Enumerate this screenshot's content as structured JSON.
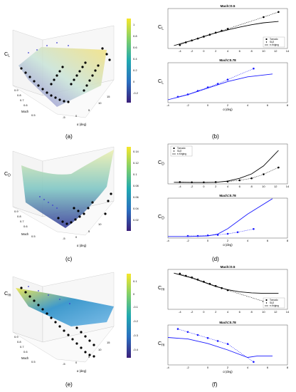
{
  "figure": {
    "captions": [
      "(a)",
      "(b)",
      "(c)",
      "(d)",
      "(e)",
      "(f)"
    ],
    "surface_axes": {
      "y_label": "Mach",
      "x_label": "α (deg)"
    },
    "surface_z_labels": [
      "CL",
      "CD",
      "Cm"
    ],
    "colorbars": [
      {
        "ticks": [
          "1",
          "0.8",
          "0.6",
          "0.4",
          "0.2",
          "0",
          "-0.2"
        ]
      },
      {
        "ticks": [
          "0.14",
          "0.12",
          "0.1",
          "0.08",
          "0.06",
          "0.04",
          "0.02"
        ]
      },
      {
        "ticks": [
          "0.1",
          "0",
          "-0.1",
          "-0.2",
          "-0.3",
          "-0.4"
        ]
      }
    ],
    "mach_ticks": [
      "0.9",
      "0.8",
      "0.7",
      "0.6",
      "0.5"
    ],
    "alpha_ticks_3d": [
      "-5",
      "0",
      "5",
      "10",
      "15"
    ],
    "legend": [
      "Tornado",
      "SU2",
      "e-Kriging"
    ]
  },
  "chart_data": [
    {
      "type": "line",
      "title": "Mach=0.5",
      "ylabel": "CL",
      "xlabel": "",
      "xlim": [
        -6,
        14
      ],
      "ylim": [
        -0.3,
        1.8
      ],
      "xticks": [
        -4,
        -2,
        0,
        2,
        4,
        6,
        8,
        10,
        12,
        14
      ],
      "series": [
        {
          "name": "Tornado",
          "style": "dotted-markers",
          "color": "#000000",
          "x": [
            -4,
            -3,
            -2,
            -1,
            0,
            1,
            2,
            3,
            4,
            10,
            12.5
          ],
          "y": [
            -0.12,
            0.02,
            0.12,
            0.22,
            0.32,
            0.42,
            0.53,
            0.63,
            0.73,
            1.35,
            1.62
          ]
        },
        {
          "name": "SU2",
          "style": "markers",
          "color": "#000000",
          "x": [
            -2,
            -1,
            0,
            1,
            2,
            3
          ],
          "y": [
            0.14,
            0.24,
            0.35,
            0.45,
            0.55,
            0.65
          ]
        },
        {
          "name": "e-Kriging",
          "style": "line",
          "color": "#000000",
          "x": [
            -5,
            -2,
            0,
            2,
            4,
            6,
            8,
            10,
            12.5
          ],
          "y": [
            -0.15,
            0.12,
            0.33,
            0.52,
            0.68,
            0.82,
            0.95,
            1.05,
            1.12
          ]
        }
      ]
    },
    {
      "type": "line",
      "title": "Mach=0.78",
      "ylabel": "CL",
      "xlabel": "α (deg)",
      "xlim": [
        -4,
        8
      ],
      "ylim": [
        -0.2,
        1.5
      ],
      "xticks": [
        -4,
        -2,
        0,
        2,
        4,
        6,
        8
      ],
      "series": [
        {
          "name": "Tornado",
          "style": "dotted-markers",
          "color": "#1a1aff",
          "x": [
            -3,
            -2,
            -1,
            0,
            1,
            2,
            4.6
          ],
          "y": [
            0.05,
            0.15,
            0.3,
            0.45,
            0.6,
            0.78,
            1.25
          ]
        },
        {
          "name": "e-Kriging",
          "style": "line",
          "color": "#1a1aff",
          "x": [
            -4,
            -2,
            0,
            2,
            4,
            6.5
          ],
          "y": [
            -0.08,
            0.14,
            0.42,
            0.7,
            0.9,
            1.02
          ]
        }
      ]
    },
    {
      "type": "line",
      "title": "",
      "ylabel": "CD",
      "xlabel": "",
      "xlim": [
        -6,
        14
      ],
      "ylim": [
        0,
        0.2
      ],
      "xticks": [
        -4,
        -2,
        0,
        2,
        4,
        6,
        8,
        10,
        12,
        14
      ],
      "series": [
        {
          "name": "Tornado",
          "style": "dotted-markers",
          "color": "#000000",
          "x": [
            -4,
            -2,
            0,
            2,
            4,
            6,
            8,
            10,
            12.5
          ],
          "y": [
            0.009,
            0.008,
            0.008,
            0.009,
            0.012,
            0.018,
            0.028,
            0.048,
            0.082
          ]
        },
        {
          "name": "e-Kriging",
          "style": "line",
          "color": "#000000",
          "x": [
            -5,
            -2,
            0,
            2,
            4,
            6,
            8,
            10,
            12.5
          ],
          "y": [
            0.008,
            0.007,
            0.007,
            0.008,
            0.014,
            0.028,
            0.05,
            0.09,
            0.168
          ]
        }
      ]
    },
    {
      "type": "line",
      "title": "Mach=0.78",
      "ylabel": "CD",
      "xlabel": "α (deg)",
      "xlim": [
        -4,
        8
      ],
      "ylim": [
        0,
        0.15
      ],
      "xticks": [
        -4,
        -2,
        0,
        2,
        4,
        6,
        8
      ],
      "series": [
        {
          "name": "Tornado",
          "style": "dotted-markers",
          "color": "#1a1aff",
          "x": [
            -2,
            -1,
            0,
            1,
            2,
            3,
            4.6
          ],
          "y": [
            0.008,
            0.008,
            0.01,
            0.012,
            0.016,
            0.022,
            0.034
          ]
        },
        {
          "name": "e-Kriging",
          "style": "line",
          "color": "#1a1aff",
          "x": [
            -4,
            -2,
            0,
            1,
            2,
            4,
            6.5
          ],
          "y": [
            0.006,
            0.006,
            0.008,
            0.015,
            0.035,
            0.09,
            0.148
          ]
        }
      ]
    },
    {
      "type": "line",
      "title": "Mach=0.5",
      "ylabel": "Cm",
      "xlabel": "",
      "xlim": [
        -6,
        14
      ],
      "ylim": [
        -0.45,
        0.3
      ],
      "xticks": [
        -4,
        -2,
        0,
        2,
        4,
        6,
        8,
        10,
        12,
        14
      ],
      "series": [
        {
          "name": "Tornado",
          "style": "dotted-markers",
          "color": "#000000",
          "x": [
            -4,
            -3,
            -2,
            -1,
            0,
            1,
            2,
            3,
            4,
            10,
            12.5
          ],
          "y": [
            0.22,
            0.18,
            0.15,
            0.11,
            0.07,
            0.03,
            -0.01,
            -0.05,
            -0.09,
            -0.3,
            -0.4
          ]
        },
        {
          "name": "SU2",
          "style": "markers",
          "color": "#000000",
          "x": [
            -2,
            -1,
            0,
            1,
            2,
            3
          ],
          "y": [
            0.14,
            0.1,
            0.06,
            0.02,
            -0.02,
            -0.06
          ]
        },
        {
          "name": "e-Kriging",
          "style": "line",
          "color": "#000000",
          "x": [
            -5,
            -2,
            0,
            2,
            4,
            6,
            8,
            10,
            12.5
          ],
          "y": [
            0.23,
            0.14,
            0.06,
            -0.02,
            -0.08,
            -0.12,
            -0.14,
            -0.15,
            -0.15
          ]
        }
      ]
    },
    {
      "type": "line",
      "title": "Mach=0.78",
      "ylabel": "Cm",
      "xlabel": "α (deg)",
      "xlim": [
        -4,
        8
      ],
      "ylim": [
        -0.5,
        0.3
      ],
      "xticks": [
        -4,
        -2,
        0,
        2,
        4,
        6,
        8
      ],
      "series": [
        {
          "name": "Tornado",
          "style": "dotted-markers",
          "color": "#1a1aff",
          "x": [
            -3,
            -2,
            -1,
            0,
            1,
            2,
            4.6
          ],
          "y": [
            0.22,
            0.16,
            0.1,
            0.04,
            -0.02,
            -0.08,
            -0.44
          ]
        },
        {
          "name": "e-Kriging",
          "style": "line",
          "color": "#1a1aff",
          "x": [
            -4,
            -2,
            0,
            2,
            4,
            5,
            6.5
          ],
          "y": [
            0.05,
            0.02,
            -0.07,
            -0.2,
            -0.35,
            -0.32,
            -0.32
          ]
        }
      ]
    }
  ]
}
